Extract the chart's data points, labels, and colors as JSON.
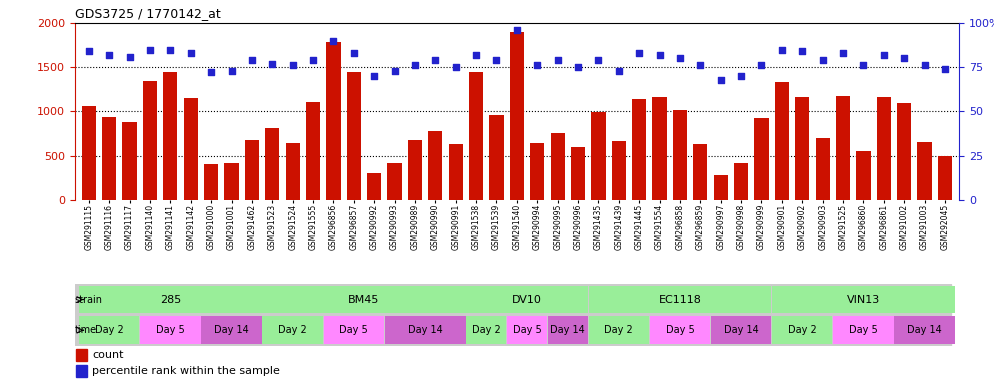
{
  "title": "GDS3725 / 1770142_at",
  "samples": [
    "GSM291115",
    "GSM291116",
    "GSM291117",
    "GSM291140",
    "GSM291141",
    "GSM291142",
    "GSM291000",
    "GSM291001",
    "GSM291462",
    "GSM291523",
    "GSM291524",
    "GSM291555",
    "GSM296856",
    "GSM296857",
    "GSM290992",
    "GSM290993",
    "GSM290989",
    "GSM290990",
    "GSM290991",
    "GSM291538",
    "GSM291539",
    "GSM291540",
    "GSM290994",
    "GSM290995",
    "GSM290996",
    "GSM291435",
    "GSM291439",
    "GSM291445",
    "GSM291554",
    "GSM296858",
    "GSM296859",
    "GSM290997",
    "GSM290998",
    "GSM290999",
    "GSM290901",
    "GSM290902",
    "GSM290903",
    "GSM291525",
    "GSM296860",
    "GSM296861",
    "GSM291002",
    "GSM291003",
    "GSM292045"
  ],
  "counts": [
    1060,
    940,
    880,
    1340,
    1450,
    1150,
    400,
    420,
    680,
    810,
    640,
    1110,
    1790,
    1450,
    300,
    420,
    680,
    780,
    630,
    1440,
    960,
    1900,
    640,
    760,
    600,
    990,
    670,
    1140,
    1160,
    1010,
    630,
    280,
    420,
    920,
    1330,
    1160,
    700,
    1170,
    550,
    1160,
    1090,
    650,
    490
  ],
  "percentiles": [
    84,
    82,
    81,
    85,
    85,
    83,
    72,
    73,
    79,
    77,
    76,
    79,
    90,
    83,
    70,
    73,
    76,
    79,
    75,
    82,
    79,
    96,
    76,
    79,
    75,
    79,
    73,
    83,
    82,
    80,
    76,
    68,
    70,
    76,
    85,
    84,
    79,
    83,
    76,
    82,
    80,
    76,
    74
  ],
  "strains": [
    {
      "name": "285",
      "start": 0,
      "end": 9
    },
    {
      "name": "BM45",
      "start": 9,
      "end": 19
    },
    {
      "name": "DV10",
      "start": 19,
      "end": 25
    },
    {
      "name": "EC1118",
      "start": 25,
      "end": 34
    },
    {
      "name": "VIN13",
      "start": 34,
      "end": 43
    }
  ],
  "times": [
    {
      "name": "Day 2",
      "start": 0,
      "end": 3
    },
    {
      "name": "Day 5",
      "start": 3,
      "end": 6
    },
    {
      "name": "Day 14",
      "start": 6,
      "end": 9
    },
    {
      "name": "Day 2",
      "start": 9,
      "end": 12
    },
    {
      "name": "Day 5",
      "start": 12,
      "end": 15
    },
    {
      "name": "Day 14",
      "start": 15,
      "end": 19
    },
    {
      "name": "Day 2",
      "start": 19,
      "end": 21
    },
    {
      "name": "Day 5",
      "start": 21,
      "end": 23
    },
    {
      "name": "Day 14",
      "start": 23,
      "end": 25
    },
    {
      "name": "Day 2",
      "start": 25,
      "end": 28
    },
    {
      "name": "Day 5",
      "start": 28,
      "end": 31
    },
    {
      "name": "Day 14",
      "start": 31,
      "end": 34
    },
    {
      "name": "Day 2",
      "start": 34,
      "end": 37
    },
    {
      "name": "Day 5",
      "start": 37,
      "end": 40
    },
    {
      "name": "Day 14",
      "start": 40,
      "end": 43
    }
  ],
  "day_colors": {
    "Day 2": "#99EE99",
    "Day 5": "#FF88FF",
    "Day 14": "#CC66CC"
  },
  "bar_color": "#CC1100",
  "dot_color": "#2222CC",
  "ylim_left": [
    0,
    2000
  ],
  "ylim_right": [
    0,
    100
  ],
  "yticks_left": [
    0,
    500,
    1000,
    1500,
    2000
  ],
  "yticks_right": [
    0,
    25,
    50,
    75,
    100
  ],
  "strain_color": "#99EE99",
  "strain_bg": "#CCCCCC",
  "grid_color": "#000000"
}
